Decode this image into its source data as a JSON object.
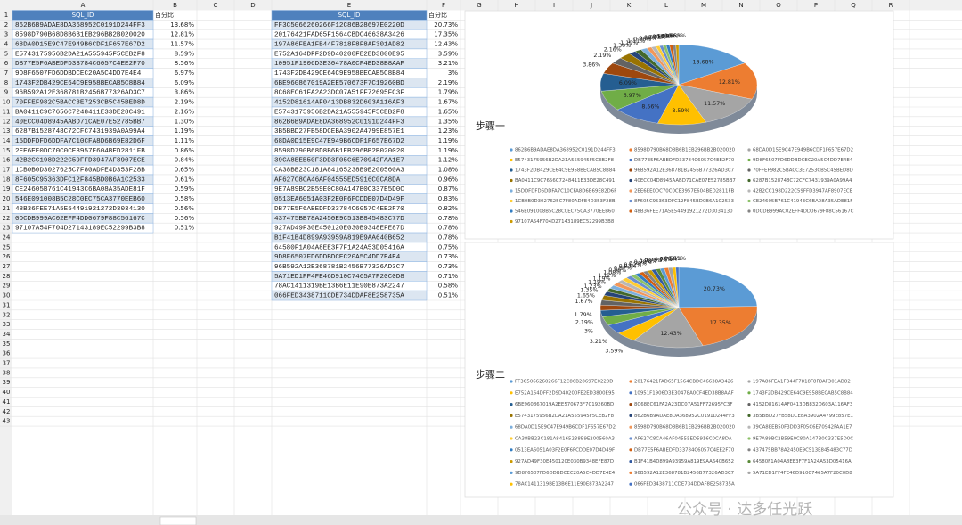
{
  "sheet": {
    "columns": [
      "A",
      "B",
      "C",
      "D",
      "E",
      "F",
      "G",
      "H",
      "I",
      "J",
      "K",
      "L",
      "M",
      "N",
      "O",
      "P",
      "Q",
      "R"
    ],
    "row_numbers": [
      1,
      2,
      3,
      4,
      5,
      6,
      7,
      8,
      9,
      10,
      11,
      12,
      13,
      14,
      15,
      16,
      17,
      18,
      19,
      20,
      21,
      22,
      23,
      24,
      25,
      26,
      27,
      28,
      29,
      30,
      31,
      32,
      33,
      34,
      35,
      36,
      37,
      38,
      39,
      40,
      41,
      42,
      43
    ],
    "tables": [
      {
        "headers": [
          "SQL_ID",
          "百分比"
        ]
      },
      {
        "headers": [
          "SQL_ID",
          "百分比"
        ]
      }
    ],
    "watermark": "公众号 · 达多任光跃"
  },
  "chart_data": [
    {
      "type": "pie",
      "title": "步骤一",
      "colors": [
        "#5b9bd5",
        "#ed7d31",
        "#a5a5a5",
        "#ffc000",
        "#4472c4",
        "#70ad47",
        "#255e91",
        "#9e480e",
        "#636363",
        "#997300",
        "#264478",
        "#43682b",
        "#7cafdd",
        "#f1975a",
        "#b7b7b7",
        "#ffcd33",
        "#698ed0",
        "#8cc168",
        "#327dc2",
        "#d26012",
        "#848484",
        "#cc9a00",
        "#335aa1",
        "#5a8a39"
      ],
      "categories": [
        "862B6B9ADAE8DA368952C0191D244FF3",
        "8598D790B68D8B6B1EB296BB2B020020",
        "68DA0D15E9C47E949B6CDF1F657E67D2",
        "E5743175956B2DA21A555945F5CEB2F8",
        "DB77E5F6ABEDFD33784C6057C4EE2F70",
        "9D8F6507FD6DDBDCEC20A5C4DD7E4E4",
        "1743F2DB429CE64C9E958BECAB5C8B84",
        "96B592A12E368781B2456B77326AD3C7",
        "70FFEF982C5BACC3E7253CB5C45BED8D",
        "BA0411C9C7656C7248411E33DE28C491",
        "40ECC04D8945AABD71CAE07E52785BB7",
        "6287B1528748C72CFC7431939A0A99A4",
        "15DDFDFD6DDFA7C10CFA8D6B69E82D6F",
        "2EE6EE0DC70C0CE3957E604BED2811FB",
        "42B2CC198D222C59FFD3947AF8907ECE",
        "1CB0B0D3027625C7F80ADFE4D353F28B",
        "8F605C95363DFC12F845BD0B6A1C2533",
        "CE24605B761C41943C6BA08A35ADE81F",
        "546E091008B5C28C0EC75CA3770EEB60",
        "48B36FEE71A5E54491921272D3034130",
        "0DCDB999AC02EFF4DD0679F88C56167C",
        "97107A54F704D27143189EC52299B3B8"
      ],
      "values": [
        13.68,
        12.81,
        11.57,
        8.59,
        8.56,
        6.97,
        6.09,
        3.86,
        2.19,
        2.16,
        1.3,
        1.19,
        1.11,
        0.86,
        0.84,
        0.65,
        0.61,
        0.59,
        0.58,
        0.56,
        0.56,
        0.51
      ],
      "value_labels": [
        "13.68%",
        "12.81%",
        "11.57%",
        "8.59%",
        "8.56%",
        "6.97%",
        "6.09%",
        "3.86%",
        "2.19%",
        "2.16%",
        "1.30%",
        "1.19%",
        "1.11%",
        "0.86%",
        "0.84%",
        "0.65%",
        "0.61%",
        "0.59%",
        "0.58%",
        "0.56%",
        "0.56%",
        "0.51%"
      ]
    },
    {
      "type": "pie",
      "title": "步骤二",
      "colors": [
        "#5b9bd5",
        "#ed7d31",
        "#a5a5a5",
        "#ffc000",
        "#4472c4",
        "#70ad47",
        "#255e91",
        "#9e480e",
        "#636363",
        "#997300",
        "#264478",
        "#43682b",
        "#7cafdd",
        "#f1975a",
        "#b7b7b7",
        "#ffcd33",
        "#698ed0",
        "#8cc168",
        "#327dc2",
        "#d26012",
        "#848484",
        "#cc9a00",
        "#335aa1",
        "#5a8a39"
      ],
      "categories": [
        "FF3C5066260266F12C86B28697E0220D",
        "20176421FAD65F1564CBDC46638A3426",
        "197A86FEA1FB44F7818F8F8AF301AD82",
        "E752A164DFF2D9D40200FE2ED3800E95",
        "10951F1906D3E30478A0CF4ED38B8AAF",
        "1743F2DB429CE64C9E958BECAB5C8B84",
        "6BE960867019A2EE570673F7C19260BD",
        "8C68EC61FA2A23DC07A51FF72695FC3F",
        "4152D81614AF0413DB832D603A116AF3",
        "E5743175956B2DA21A555945F5CEB2F8",
        "862B6B9ADAE8DA368952C0191D244FF3",
        "3B5BBD27FB58DCEBA3902A4799E857E1",
        "68DA0D15E9C47E949B6CDF1F657E67D2",
        "8598D790B68D8B6B1EB296BB2B020020",
        "39CA8EEB50F3DD3F05C6E70942FAA1E7",
        "CA38BB23C181A84165238B9E200560A3",
        "AF627C8CA46AF04555ED5916C0CA8DA",
        "9E7A89BC2B59E0C80A147B0C337E5D0C",
        "0513EA6051A03F2E0F6FCDDE07D4D49F",
        "DB77E5F6ABEDFD33784C6057C4EE2F70",
        "437475BB78A2450E9C513E845483C77D",
        "927AD49F30E450120E030B9348EFE87D",
        "B1F41B4D899A93959A819E9AA640B652",
        "64580F1A04A8EE3F7F1A24A53D05416A",
        "9D8F6507FD6DDBDCEC20A5C4DD7E4E4",
        "96B592A12E368781B2456B77326AD3C7",
        "5A71ED1FF4FE46D910C7465A7F20C0D8",
        "78AC1411319BE13B6E11E90E873A2247",
        "066FED3438711CDE734DDAF8E258735A"
      ],
      "values": [
        20.73,
        17.35,
        12.43,
        3.59,
        3.21,
        3,
        2.19,
        1.79,
        1.67,
        1.65,
        1.35,
        1.23,
        1.19,
        1.19,
        1.12,
        1.08,
        0.96,
        0.87,
        0.83,
        0.82,
        0.78,
        0.78,
        0.78,
        0.75,
        0.73,
        0.73,
        0.71,
        0.58,
        0.51
      ],
      "value_labels": [
        "20.73%",
        "17.35%",
        "12.43%",
        "3.59%",
        "3.21%",
        "3%",
        "2.19%",
        "1.79%",
        "1.67%",
        "1.65%",
        "1.35%",
        "1.23%",
        "1.19%",
        "1.19%",
        "1.12%",
        "1.08%",
        "0.96%",
        "0.87%",
        "0.83%",
        "0.82%",
        "0.78%",
        "0.78%",
        "0.78%",
        "0.75%",
        "0.73%",
        "0.73%",
        "0.71%",
        "0.58%",
        "0.51%"
      ]
    }
  ]
}
